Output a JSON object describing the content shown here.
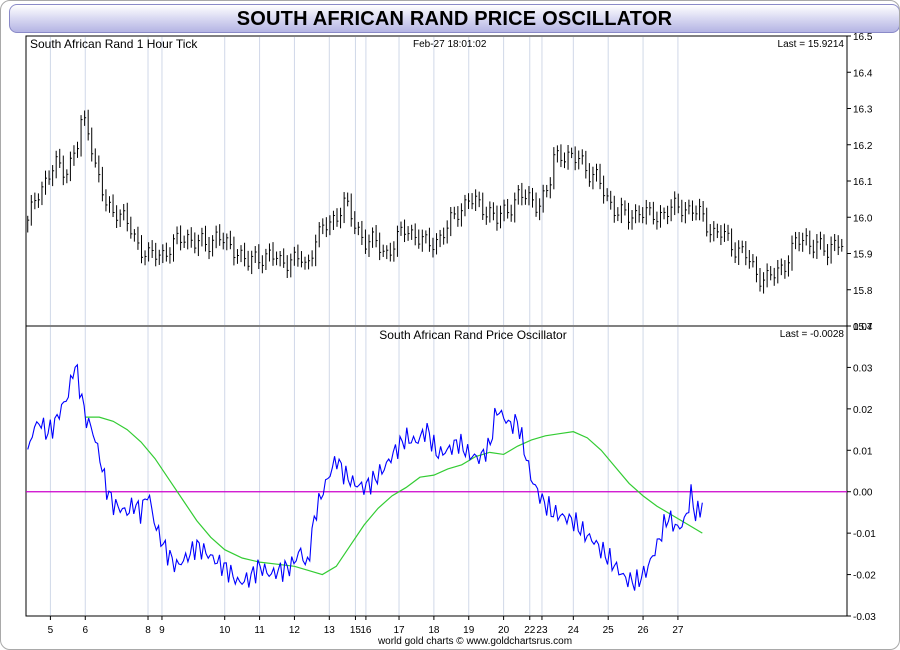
{
  "page": {
    "title": "SOUTH AFRICAN RAND PRICE OSCILLATOR",
    "footer": "world gold charts © www.goldchartsrus.com"
  },
  "colors": {
    "price_bars": "#000000",
    "oscillator": "#0000ff",
    "signal": "#33cc33",
    "zero_line": "#cc00cc",
    "grid": "#d0d8e8",
    "title_gradient": "#b4b4e4"
  },
  "chart_data": [
    {
      "type": "bar",
      "subtype": "ohlc",
      "title": "South African Rand 1 Hour Tick",
      "timestamp": "Feb-27  18:01:02",
      "last_label": "Last = 15.9214",
      "ylim": [
        15.7,
        16.5
      ],
      "yticks": [
        "15.7",
        "15.8",
        "15.9",
        "16.0",
        "16.1",
        "16.2",
        "16.3",
        "16.4",
        "16.5"
      ],
      "series": [
        {
          "name": "USD/ZAR close",
          "x": [
            4.35,
            4.6,
            4.9,
            5.2,
            5.5,
            5.8,
            5.9,
            6.1,
            6.3,
            6.6,
            6.9,
            7.2,
            7.5,
            7.8,
            8.2,
            8.5,
            8.9,
            9.2,
            9.5,
            9.8,
            10.1,
            10.4,
            10.7,
            11.0,
            11.3,
            11.6,
            11.9,
            12.2,
            12.35,
            12.6,
            12.9,
            13.2,
            13.4,
            13.7,
            14.0,
            14.3,
            14.6,
            14.9,
            15.2,
            15.5,
            15.8,
            16.1,
            16.4,
            16.7,
            17.0,
            17.3,
            17.6,
            17.8,
            18.1,
            18.4,
            18.7,
            19.0,
            19.3,
            19.45,
            19.7,
            20.0,
            20.2,
            20.4,
            20.7,
            21.0,
            21.3,
            21.6,
            21.9,
            22.2,
            22.5,
            22.8,
            23.1,
            23.4,
            23.7,
            24.0,
            24.3,
            24.6,
            24.9,
            25.2,
            25.5,
            25.8,
            26.1,
            26.4,
            26.7,
            27.0,
            27.3,
            27.55,
            27.7
          ],
          "values": [
            15.98,
            16.07,
            16.1,
            16.15,
            16.13,
            16.2,
            16.27,
            16.25,
            16.13,
            16.03,
            16.02,
            15.98,
            15.93,
            15.89,
            15.9,
            15.92,
            15.95,
            15.93,
            15.92,
            15.96,
            15.91,
            15.91,
            15.87,
            15.89,
            15.9,
            15.87,
            15.89,
            15.88,
            15.85,
            15.95,
            15.97,
            16.0,
            16.05,
            15.98,
            15.94,
            15.93,
            15.9,
            15.93,
            15.97,
            15.95,
            15.92,
            15.94,
            15.97,
            16.02,
            16.05,
            16.03,
            16.02,
            15.99,
            16.02,
            16.06,
            16.05,
            16.04,
            16.07,
            16.17,
            16.18,
            16.15,
            16.17,
            16.13,
            16.1,
            16.05,
            16.01,
            16.0,
            16.02,
            16.0,
            16.01,
            16.02,
            16.03,
            16.02,
            16.0,
            15.96,
            15.95,
            15.92,
            15.9,
            15.85,
            15.83,
            15.84,
            15.88,
            15.93,
            15.94,
            15.92,
            15.9,
            15.95,
            15.92
          ]
        }
      ]
    },
    {
      "type": "line",
      "title": "South African Rand Price Oscillator",
      "last_label": "Last = -0.0028",
      "xlabel": "",
      "categories": [
        "5",
        "6",
        "8",
        "9",
        "10",
        "11",
        "12",
        "13",
        "15",
        "16",
        "17",
        "18",
        "19",
        "20",
        "22",
        "23",
        "24",
        "25",
        "26",
        "27"
      ],
      "category_positions": [
        5,
        6,
        7.8,
        8.2,
        10,
        11,
        12,
        13,
        13.75,
        14.05,
        15,
        16,
        17,
        18,
        18.75,
        19.1,
        20,
        21,
        22,
        23
      ],
      "ylim": [
        -0.03,
        0.04
      ],
      "yticks": [
        "-0.03",
        "-0.02",
        "-0.01",
        "0.00",
        "0.01",
        "0.02",
        "0.03",
        "0.04"
      ],
      "series": [
        {
          "name": "Price Oscillator",
          "x": [
            4.35,
            4.5,
            4.7,
            4.9,
            5.1,
            5.3,
            5.5,
            5.7,
            5.85,
            6.0,
            6.2,
            6.4,
            6.6,
            6.8,
            7.0,
            7.2,
            7.4,
            7.6,
            7.8,
            8.0,
            8.3,
            8.6,
            8.9,
            9.2,
            9.5,
            9.8,
            10.1,
            10.4,
            10.7,
            11.0,
            11.3,
            11.6,
            11.9,
            12.2,
            12.35,
            12.6,
            12.9,
            13.2,
            13.45,
            13.7,
            14.0,
            14.3,
            14.6,
            14.9,
            15.2,
            15.5,
            15.8,
            16.1,
            16.4,
            16.7,
            17.0,
            17.3,
            17.6,
            17.8,
            18.0,
            18.2,
            18.4,
            18.6,
            18.8,
            19.1,
            19.4,
            19.7,
            20.0,
            20.3,
            20.6,
            20.9,
            21.2,
            21.5,
            21.8,
            22.1,
            22.4,
            22.7,
            23.0,
            23.2,
            23.4,
            23.5,
            23.7
          ],
          "values": [
            0.009,
            0.015,
            0.017,
            0.014,
            0.016,
            0.02,
            0.023,
            0.031,
            0.025,
            0.018,
            0.015,
            0.009,
            0.001,
            -0.003,
            -0.004,
            -0.005,
            -0.003,
            -0.005,
            0.0,
            -0.008,
            -0.014,
            -0.018,
            -0.016,
            -0.013,
            -0.015,
            -0.017,
            -0.019,
            -0.022,
            -0.021,
            -0.018,
            -0.02,
            -0.019,
            -0.018,
            -0.014,
            -0.019,
            -0.005,
            0.002,
            0.008,
            0.004,
            0.002,
            0.001,
            0.003,
            0.006,
            0.01,
            0.013,
            0.012,
            0.015,
            0.009,
            0.01,
            0.012,
            0.009,
            0.008,
            0.011,
            0.02,
            0.018,
            0.016,
            0.017,
            0.01,
            0.003,
            -0.002,
            -0.005,
            -0.006,
            -0.007,
            -0.01,
            -0.012,
            -0.015,
            -0.018,
            -0.021,
            -0.022,
            -0.019,
            -0.013,
            -0.006,
            -0.009,
            -0.007,
            0.0,
            -0.006,
            -0.003
          ]
        },
        {
          "name": "Signal",
          "x": [
            6.0,
            6.4,
            6.8,
            7.2,
            7.6,
            8.0,
            8.4,
            8.8,
            9.2,
            9.6,
            10.0,
            10.5,
            11.0,
            11.5,
            12.0,
            12.4,
            12.8,
            13.2,
            13.6,
            14.0,
            14.4,
            14.8,
            15.2,
            15.6,
            16.0,
            16.4,
            16.8,
            17.2,
            17.6,
            18.0,
            18.4,
            18.8,
            19.2,
            19.6,
            20.0,
            20.4,
            20.8,
            21.2,
            21.6,
            22.0,
            22.4,
            22.8,
            23.2,
            23.7
          ],
          "values": [
            0.018,
            0.018,
            0.017,
            0.015,
            0.012,
            0.008,
            0.003,
            -0.002,
            -0.007,
            -0.011,
            -0.014,
            -0.016,
            -0.017,
            -0.0175,
            -0.018,
            -0.019,
            -0.02,
            -0.018,
            -0.013,
            -0.008,
            -0.004,
            -0.001,
            0.001,
            0.0035,
            0.004,
            0.0055,
            0.0065,
            0.0085,
            0.0095,
            0.009,
            0.011,
            0.0125,
            0.0135,
            0.014,
            0.0145,
            0.013,
            0.01,
            0.006,
            0.002,
            -0.001,
            -0.0035,
            -0.0055,
            -0.0075,
            -0.01
          ]
        }
      ]
    }
  ]
}
